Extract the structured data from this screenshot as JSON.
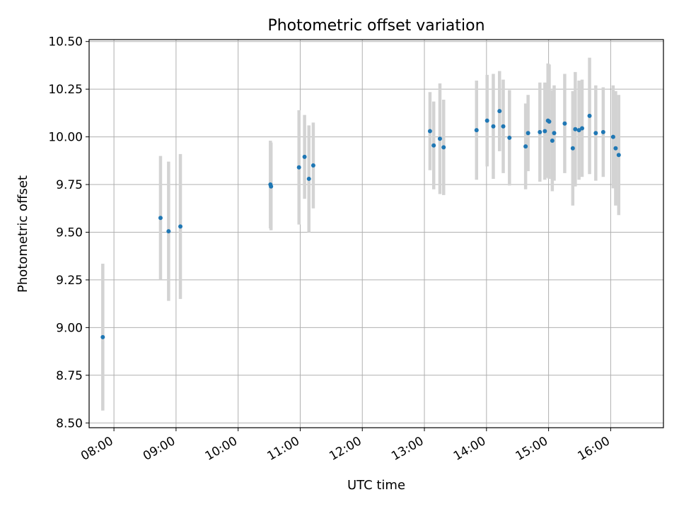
{
  "chart_data": {
    "type": "scatter",
    "title": "Photometric offset variation",
    "xlabel": "UTC time",
    "ylabel": "Photometric offset",
    "x_unit": "hours UTC",
    "xlim": [
      7.6,
      16.85
    ],
    "ylim": [
      8.475,
      10.51
    ],
    "grid": true,
    "x_ticks": [
      {
        "value": 8,
        "label": "08:00"
      },
      {
        "value": 9,
        "label": "09:00"
      },
      {
        "value": 10,
        "label": "10:00"
      },
      {
        "value": 11,
        "label": "11:00"
      },
      {
        "value": 12,
        "label": "12:00"
      },
      {
        "value": 13,
        "label": "13:00"
      },
      {
        "value": 14,
        "label": "14:00"
      },
      {
        "value": 15,
        "label": "15:00"
      },
      {
        "value": 16,
        "label": "16:00"
      }
    ],
    "y_ticks": [
      {
        "value": 8.5,
        "label": "8.50"
      },
      {
        "value": 8.75,
        "label": "8.75"
      },
      {
        "value": 9.0,
        "label": "9.00"
      },
      {
        "value": 9.25,
        "label": "9.25"
      },
      {
        "value": 9.5,
        "label": "9.50"
      },
      {
        "value": 9.75,
        "label": "9.75"
      },
      {
        "value": 10.0,
        "label": "10.00"
      },
      {
        "value": 10.25,
        "label": "10.25"
      },
      {
        "value": 10.5,
        "label": "10.50"
      }
    ],
    "series": [
      {
        "name": "Photometric offset",
        "color": "#1f77b4",
        "error_color": "#d3d3d3",
        "points": [
          {
            "x": 7.82,
            "y": 8.95,
            "err": 0.385
          },
          {
            "x": 8.75,
            "y": 9.575,
            "err": 0.325
          },
          {
            "x": 8.88,
            "y": 9.505,
            "err": 0.365
          },
          {
            "x": 9.07,
            "y": 9.53,
            "err": 0.38
          },
          {
            "x": 10.52,
            "y": 9.75,
            "err": 0.23
          },
          {
            "x": 10.53,
            "y": 9.74,
            "err": 0.23
          },
          {
            "x": 10.98,
            "y": 9.84,
            "err": 0.3
          },
          {
            "x": 11.07,
            "y": 9.895,
            "err": 0.22
          },
          {
            "x": 11.14,
            "y": 9.78,
            "err": 0.28
          },
          {
            "x": 11.21,
            "y": 9.85,
            "err": 0.225
          },
          {
            "x": 13.09,
            "y": 10.03,
            "err": 0.205
          },
          {
            "x": 13.15,
            "y": 9.955,
            "err": 0.23
          },
          {
            "x": 13.25,
            "y": 9.99,
            "err": 0.29
          },
          {
            "x": 13.31,
            "y": 9.945,
            "err": 0.25
          },
          {
            "x": 13.84,
            "y": 10.035,
            "err": 0.26
          },
          {
            "x": 14.01,
            "y": 10.085,
            "err": 0.24
          },
          {
            "x": 14.11,
            "y": 10.055,
            "err": 0.275
          },
          {
            "x": 14.21,
            "y": 10.135,
            "err": 0.21
          },
          {
            "x": 14.27,
            "y": 10.055,
            "err": 0.245
          },
          {
            "x": 14.37,
            "y": 9.995,
            "err": 0.25
          },
          {
            "x": 14.63,
            "y": 9.95,
            "err": 0.225
          },
          {
            "x": 14.67,
            "y": 10.02,
            "err": 0.2
          },
          {
            "x": 14.86,
            "y": 10.025,
            "err": 0.26
          },
          {
            "x": 14.94,
            "y": 10.03,
            "err": 0.255
          },
          {
            "x": 14.99,
            "y": 10.085,
            "err": 0.3
          },
          {
            "x": 15.01,
            "y": 10.08,
            "err": 0.3
          },
          {
            "x": 15.06,
            "y": 9.98,
            "err": 0.265
          },
          {
            "x": 15.09,
            "y": 10.02,
            "err": 0.25
          },
          {
            "x": 15.26,
            "y": 10.07,
            "err": 0.26
          },
          {
            "x": 15.39,
            "y": 9.94,
            "err": 0.3
          },
          {
            "x": 15.43,
            "y": 10.04,
            "err": 0.3
          },
          {
            "x": 15.49,
            "y": 10.035,
            "err": 0.26
          },
          {
            "x": 15.54,
            "y": 10.045,
            "err": 0.255
          },
          {
            "x": 15.66,
            "y": 10.11,
            "err": 0.305
          },
          {
            "x": 15.76,
            "y": 10.02,
            "err": 0.25
          },
          {
            "x": 15.88,
            "y": 10.025,
            "err": 0.235
          },
          {
            "x": 16.04,
            "y": 10.0,
            "err": 0.27
          },
          {
            "x": 16.08,
            "y": 9.94,
            "err": 0.3
          },
          {
            "x": 16.13,
            "y": 9.905,
            "err": 0.315
          }
        ]
      }
    ]
  }
}
